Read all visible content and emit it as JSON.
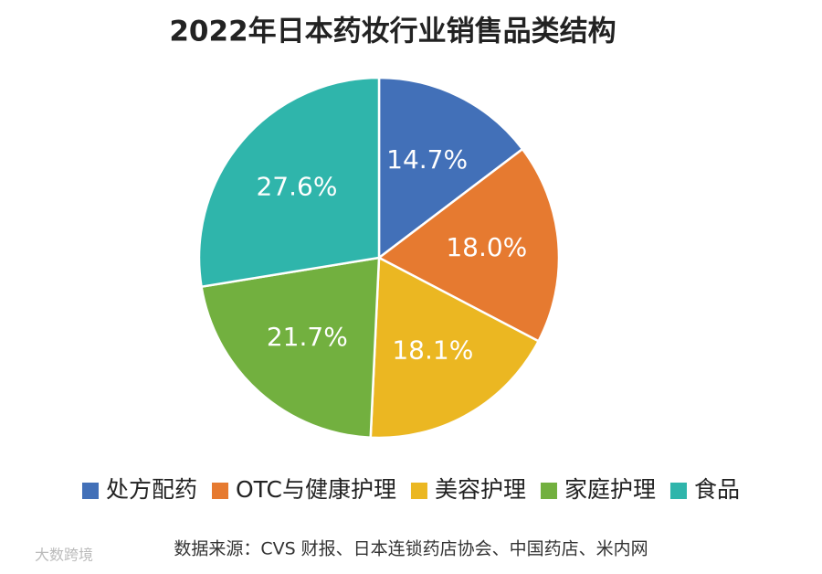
{
  "chart_data": {
    "type": "pie",
    "title": "2022年日本药妆行业销售品类结构",
    "categories": [
      "处方配药",
      "OTC与健康护理",
      "美容护理",
      "家庭护理",
      "食品"
    ],
    "values": [
      14.7,
      18.0,
      18.1,
      21.7,
      27.6
    ],
    "value_labels": [
      "14.7%",
      "18.0%",
      "18.1%",
      "21.7%",
      "27.6%"
    ],
    "colors": [
      "#4270b8",
      "#e67a30",
      "#ebb722",
      "#72b03f",
      "#2fb5ab"
    ],
    "source": "数据来源：CVS 财报、日本连锁药店协会、中国药店、米内网",
    "watermark": "大数跨境"
  }
}
